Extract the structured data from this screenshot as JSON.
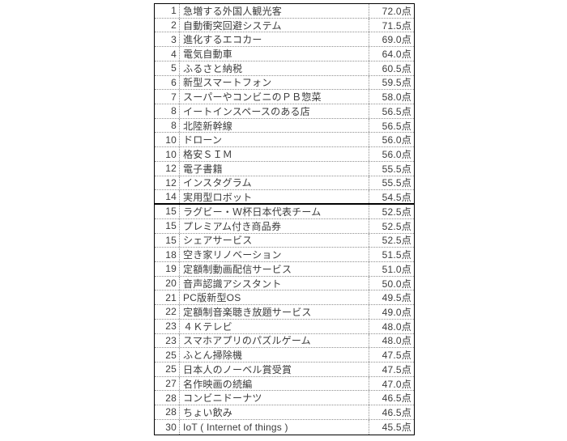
{
  "chart_data": {
    "type": "table",
    "unit": "点",
    "rows": [
      {
        "rank": "1",
        "name": "急増する外国人観光客",
        "value": 72.0,
        "score_label": "72.0点"
      },
      {
        "rank": "2",
        "name": "自動衝突回避システム",
        "value": 71.5,
        "score_label": "71.5点"
      },
      {
        "rank": "3",
        "name": "進化するエコカー",
        "value": 69.0,
        "score_label": "69.0点"
      },
      {
        "rank": "4",
        "name": "電気自動車",
        "value": 64.0,
        "score_label": "64.0点"
      },
      {
        "rank": "5",
        "name": "ふるさと納税",
        "value": 60.5,
        "score_label": "60.5点"
      },
      {
        "rank": "6",
        "name": "新型スマートフォン",
        "value": 59.5,
        "score_label": "59.5点"
      },
      {
        "rank": "7",
        "name": "スーパーやコンビニのＰＢ惣菜",
        "value": 58.0,
        "score_label": "58.0点"
      },
      {
        "rank": "8",
        "name": "イートインスペースのある店",
        "value": 56.5,
        "score_label": "56.5点"
      },
      {
        "rank": "8",
        "name": "北陸新幹線",
        "value": 56.5,
        "score_label": "56.5点"
      },
      {
        "rank": "10",
        "name": "ドローン",
        "value": 56.0,
        "score_label": "56.0点"
      },
      {
        "rank": "10",
        "name": "格安ＳＩＭ",
        "value": 56.0,
        "score_label": "56.0点"
      },
      {
        "rank": "12",
        "name": "電子書籍",
        "value": 55.5,
        "score_label": "55.5点"
      },
      {
        "rank": "12",
        "name": "インスタグラム",
        "value": 55.5,
        "score_label": "55.5点"
      },
      {
        "rank": "14",
        "name": "実用型ロボット",
        "value": 54.5,
        "score_label": "54.5点"
      },
      {
        "rank": "15",
        "name": "ラグビー・Ｗ杯日本代表チーム",
        "value": 52.5,
        "score_label": "52.5点"
      },
      {
        "rank": "15",
        "name": "プレミアム付き商品券",
        "value": 52.5,
        "score_label": "52.5点"
      },
      {
        "rank": "15",
        "name": "シェアサービス",
        "value": 52.5,
        "score_label": "52.5点"
      },
      {
        "rank": "18",
        "name": "空き家リノベーション",
        "value": 51.5,
        "score_label": "51.5点"
      },
      {
        "rank": "19",
        "name": "定額制動画配信サービス",
        "value": 51.0,
        "score_label": "51.0点"
      },
      {
        "rank": "20",
        "name": "音声認識アシスタント",
        "value": 50.0,
        "score_label": "50.0点"
      },
      {
        "rank": "21",
        "name": "PC版新型OS",
        "value": 49.5,
        "score_label": "49.5点"
      },
      {
        "rank": "22",
        "name": "定額制音楽聴き放題サービス",
        "value": 49.0,
        "score_label": "49.0点"
      },
      {
        "rank": "23",
        "name": "４Ｋテレビ",
        "value": 48.0,
        "score_label": "48.0点"
      },
      {
        "rank": "23",
        "name": "スマホアプリのパズルゲーム",
        "value": 48.0,
        "score_label": "48.0点"
      },
      {
        "rank": "25",
        "name": "ふとん掃除機",
        "value": 47.5,
        "score_label": "47.5点"
      },
      {
        "rank": "25",
        "name": "日本人のノーベル賞受賞",
        "value": 47.5,
        "score_label": "47.5点"
      },
      {
        "rank": "27",
        "name": "名作映画の続編",
        "value": 47.0,
        "score_label": "47.0点"
      },
      {
        "rank": "28",
        "name": "コンビニドーナツ",
        "value": 46.5,
        "score_label": "46.5点"
      },
      {
        "rank": "28",
        "name": "ちょい飲み",
        "value": 46.5,
        "score_label": "46.5点"
      },
      {
        "rank": "30",
        "name": "IoT ( Internet of things )",
        "value": 45.5,
        "score_label": "45.5点"
      }
    ]
  }
}
